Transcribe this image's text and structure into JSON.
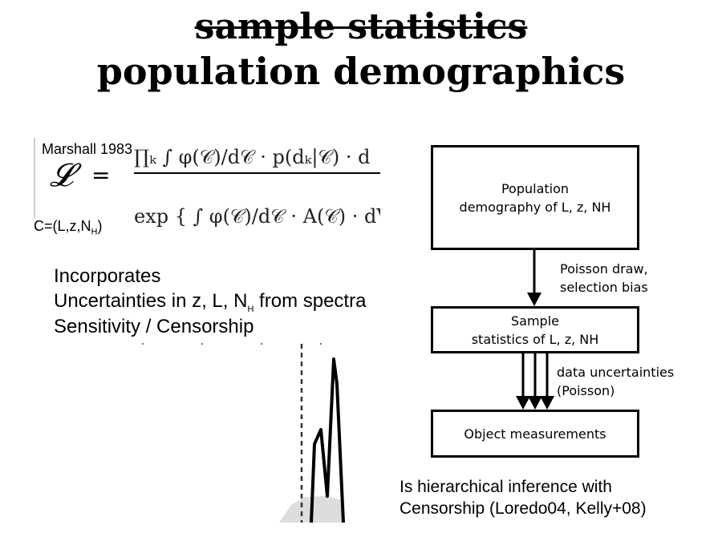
{
  "title": {
    "struck": "sample statistics",
    "main": "population demographics"
  },
  "equation": {
    "citation": "Marshall 1983",
    "variable_def": "C=(L,z,N",
    "variable_def_sub": "H",
    "variable_def_end": ")",
    "lhs": "𝓛",
    "equals": "=",
    "numerator": "∏ₖ ∫ φ(𝒞)/d𝒞 · p(dₖ|𝒞) · d",
    "denominator": "exp { ∫ φ(𝒞)/d𝒞 · A(𝒞) · dV/dz"
  },
  "incorporates": {
    "heading": "Incorporates",
    "line1": "Uncertainties in z, L, N",
    "line1_sub": "H",
    "line1_end": " from spectra",
    "line2": "Sensitivity / Censorship"
  },
  "flow": {
    "population_line1": "Population",
    "population_line2": "demography of L, z, NH",
    "arrow1_line1": "Poisson draw,",
    "arrow1_line2": "selection bias",
    "sample_line1": "Sample",
    "sample_line2": "statistics of L, z, NH",
    "arrow2_line1": "data uncertainties",
    "arrow2_line2": "(Poisson)",
    "measurements": "Object measurements"
  },
  "conclusion": {
    "line1": "Is hierarchical inference with",
    "line2": "Censorship (Loredo04, Kelly+08)"
  }
}
